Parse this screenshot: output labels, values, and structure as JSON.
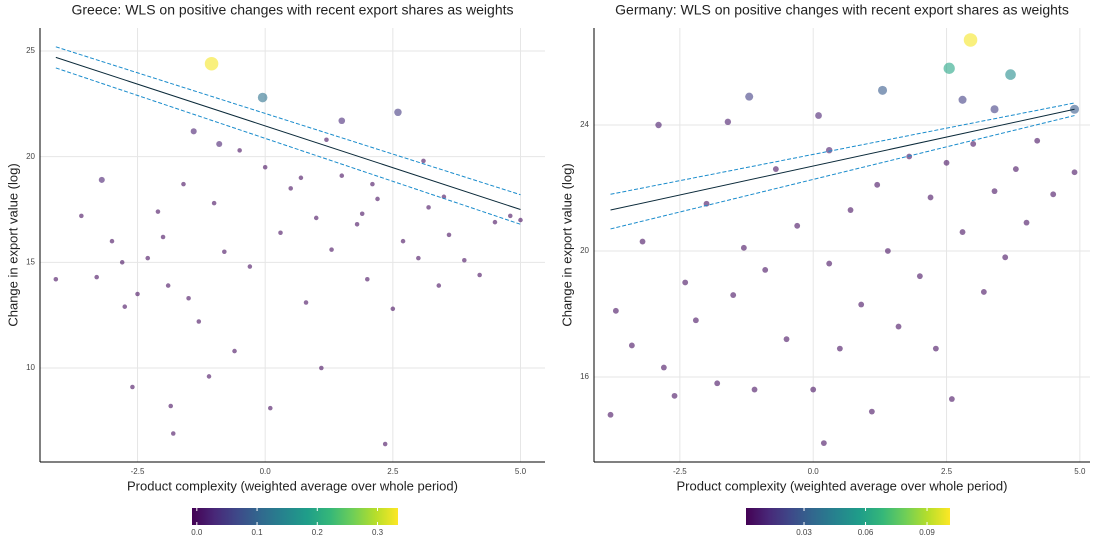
{
  "chart_data": [
    {
      "type": "scatter",
      "title": "Greece: WLS on positive changes with recent export shares as weights",
      "x_label": "Product complexity (weighted average over whole period)",
      "y_label": "Change in export value (log)",
      "xlim": [
        -4.41,
        5.48
      ],
      "ylim": [
        5.55,
        26.09
      ],
      "xticks": [
        -2.5,
        {
          "value": 0,
          "label": "0.0"
        },
        2.5,
        {
          "value": 5,
          "label": "5.0"
        }
      ],
      "yticks": [
        10,
        15,
        20,
        25
      ],
      "grid": true,
      "points": {
        "x": [
          -4.1,
          -3.6,
          -3.3,
          -3.0,
          -2.8,
          -2.75,
          -2.6,
          -2.5,
          -2.3,
          -2.1,
          -1.9,
          -1.85,
          -1.8,
          -1.6,
          -1.5,
          -1.3,
          -1.1,
          -1.0,
          -0.8,
          -0.6,
          -0.3,
          0.1,
          0.3,
          0.5,
          0.8,
          1.0,
          1.1,
          1.3,
          1.5,
          1.8,
          2.0,
          2.2,
          2.35,
          2.5,
          2.7,
          3.0,
          3.2,
          3.4,
          3.6,
          3.9,
          4.2,
          4.5,
          4.8,
          5.0,
          0.0,
          -0.5,
          1.2,
          2.1,
          3.1,
          -3.2,
          -1.05,
          -0.05,
          2.6,
          1.5,
          -1.4,
          -0.9,
          0.7,
          1.9,
          3.5,
          -2.0
        ],
        "y": [
          14.2,
          17.2,
          14.3,
          16.0,
          15.0,
          12.9,
          9.1,
          13.5,
          15.2,
          17.4,
          13.9,
          8.2,
          6.9,
          18.7,
          13.3,
          12.2,
          9.6,
          17.8,
          15.5,
          10.8,
          14.8,
          8.1,
          16.4,
          18.5,
          13.1,
          17.1,
          10.0,
          15.6,
          19.1,
          16.8,
          14.2,
          18.0,
          6.4,
          12.8,
          16.0,
          15.2,
          17.6,
          13.9,
          16.3,
          15.1,
          14.4,
          16.9,
          17.2,
          17.0,
          19.5,
          20.3,
          20.8,
          18.7,
          19.8,
          18.9,
          24.4,
          22.8,
          22.1,
          21.7,
          21.2,
          20.6,
          19.0,
          17.3,
          18.1,
          16.2
        ],
        "weights": [
          0.003,
          0.003,
          0.003,
          0.003,
          0.003,
          0.003,
          0.003,
          0.003,
          0.003,
          0.003,
          0.003,
          0.003,
          0.003,
          0.003,
          0.003,
          0.003,
          0.003,
          0.003,
          0.003,
          0.003,
          0.003,
          0.003,
          0.003,
          0.003,
          0.003,
          0.003,
          0.003,
          0.003,
          0.003,
          0.003,
          0.003,
          0.003,
          0.003,
          0.003,
          0.003,
          0.003,
          0.003,
          0.003,
          0.003,
          0.003,
          0.003,
          0.003,
          0.003,
          0.003,
          0.003,
          0.003,
          0.003,
          0.003,
          0.003,
          0.02,
          0.33,
          0.12,
          0.05,
          0.03,
          0.02,
          0.02,
          0.003,
          0.003,
          0.003,
          0.003
        ]
      },
      "fit": {
        "x": [
          -4.1,
          5.0
        ],
        "y": [
          24.7,
          17.5
        ],
        "upper": [
          25.2,
          18.2
        ],
        "lower": [
          24.2,
          16.8
        ]
      },
      "fit_color": "#0b2a3a",
      "band_color": "#1a8ccc",
      "colorbar": {
        "lim": [
          -0.008,
          0.334
        ],
        "ticks": [
          {
            "value": 0,
            "label": "0.0"
          },
          0.1,
          0.2,
          0.3
        ]
      }
    },
    {
      "type": "scatter",
      "title": "Germany: WLS on positive changes with recent export shares as weights",
      "x_label": "Product complexity (weighted average over whole period)",
      "y_label": "Change in export value (log)",
      "xlim": [
        -4.11,
        5.19
      ],
      "ylim": [
        13.3,
        27.08
      ],
      "xticks": [
        -2.5,
        {
          "value": 0,
          "label": "0.0"
        },
        2.5,
        {
          "value": 5,
          "label": "5.0"
        }
      ],
      "yticks": [
        16,
        20,
        24
      ],
      "grid": true,
      "points": {
        "x": [
          -3.8,
          -3.7,
          -3.4,
          -3.2,
          -2.8,
          -2.6,
          -2.4,
          -2.2,
          -2.0,
          -1.8,
          -1.5,
          -1.3,
          -1.1,
          -0.9,
          -0.7,
          -0.5,
          -0.3,
          0.0,
          0.2,
          0.3,
          0.5,
          0.7,
          0.9,
          1.1,
          1.2,
          1.4,
          1.6,
          1.8,
          2.0,
          2.2,
          2.3,
          2.5,
          2.6,
          2.8,
          3.0,
          3.2,
          3.4,
          3.6,
          3.8,
          4.0,
          4.2,
          4.5,
          4.9,
          -2.9,
          -1.6,
          0.3,
          -1.2,
          1.3,
          2.55,
          3.7,
          2.95,
          2.8,
          4.9,
          0.1,
          3.4
        ],
        "y": [
          14.8,
          18.1,
          17.0,
          20.3,
          16.3,
          15.4,
          19.0,
          17.8,
          21.5,
          15.8,
          18.6,
          20.1,
          15.6,
          19.4,
          22.6,
          17.2,
          20.8,
          15.6,
          13.9,
          19.6,
          16.9,
          21.3,
          18.3,
          14.9,
          22.1,
          20.0,
          17.6,
          23.0,
          19.2,
          21.7,
          16.9,
          22.8,
          15.3,
          20.6,
          23.4,
          18.7,
          21.9,
          19.8,
          22.6,
          20.9,
          23.5,
          21.8,
          22.5,
          24.0,
          24.1,
          23.2,
          24.9,
          25.1,
          25.8,
          25.6,
          26.7,
          24.8,
          24.5,
          24.3,
          24.5
        ],
        "weights": [
          0.005,
          0.005,
          0.005,
          0.005,
          0.005,
          0.005,
          0.005,
          0.005,
          0.005,
          0.005,
          0.005,
          0.005,
          0.005,
          0.005,
          0.005,
          0.005,
          0.005,
          0.005,
          0.005,
          0.005,
          0.005,
          0.005,
          0.005,
          0.005,
          0.005,
          0.005,
          0.005,
          0.005,
          0.005,
          0.005,
          0.005,
          0.005,
          0.005,
          0.005,
          0.005,
          0.005,
          0.005,
          0.005,
          0.005,
          0.005,
          0.005,
          0.005,
          0.005,
          0.008,
          0.008,
          0.008,
          0.02,
          0.03,
          0.06,
          0.05,
          0.1,
          0.02,
          0.03,
          0.01,
          0.02
        ]
      },
      "fit": {
        "x": [
          -3.8,
          4.9
        ],
        "y": [
          21.3,
          24.5
        ],
        "upper": [
          21.8,
          24.7
        ],
        "lower": [
          20.7,
          24.3
        ]
      },
      "fit_color": "#0b2a3a",
      "band_color": "#1a8ccc",
      "colorbar": {
        "lim": [
          0.0017,
          0.1012
        ],
        "ticks": [
          0.03,
          0.06,
          0.09
        ]
      }
    }
  ]
}
